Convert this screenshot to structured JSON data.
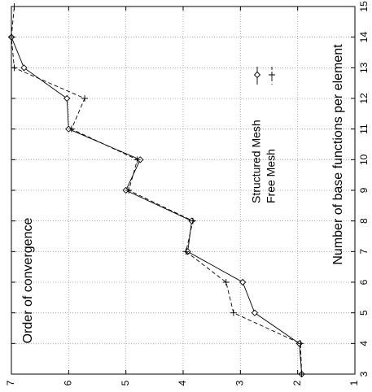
{
  "chart_data": {
    "type": "line",
    "orientation": "rotated-90-clockwise",
    "title": "",
    "xlabel": "Number of base functions per element",
    "ylabel": "Order of convergence",
    "xlim": [
      3,
      15
    ],
    "ylim": [
      1,
      7
    ],
    "x_ticks": [
      "3",
      "4",
      "5",
      "6",
      "7",
      "8",
      "9",
      "10",
      "11",
      "12",
      "13",
      "14",
      "15"
    ],
    "y_ticks": [
      "1",
      "2",
      "3",
      "4",
      "5",
      "6",
      "7"
    ],
    "grid": true,
    "legend_position": "upper-right",
    "series": [
      {
        "name": "Structured Mesh",
        "line_style": "solid",
        "marker": "diamond",
        "x": [
          3,
          4,
          5,
          6,
          7,
          8,
          9,
          10,
          11,
          12,
          13,
          14
        ],
        "y": [
          1.93,
          1.97,
          2.75,
          2.96,
          3.92,
          3.85,
          5.0,
          4.75,
          6.0,
          6.03,
          6.78,
          7.02
        ]
      },
      {
        "name": "Free Mesh",
        "line_style": "dashed",
        "marker": "plus",
        "x": [
          3,
          4,
          5,
          6,
          7,
          8,
          9,
          10,
          11,
          12,
          13,
          14,
          15
        ],
        "y": [
          1.93,
          1.95,
          3.12,
          3.25,
          3.95,
          3.83,
          4.95,
          4.8,
          5.95,
          5.72,
          6.95,
          7.28,
          6.95
        ]
      }
    ]
  }
}
